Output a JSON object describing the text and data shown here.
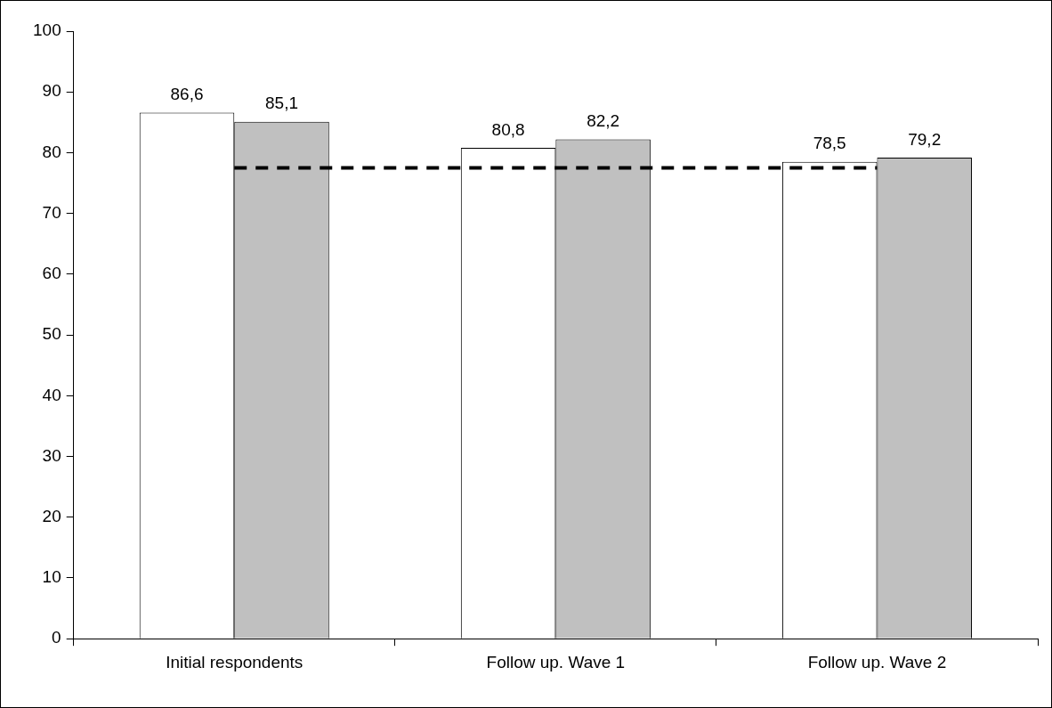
{
  "chart_data": {
    "type": "bar",
    "categories": [
      "Initial respondents",
      "Follow up. Wave 1",
      "Follow up. Wave 2"
    ],
    "series": [
      {
        "color": "#ffffff",
        "values": [
          86.6,
          80.8,
          78.5
        ],
        "value_labels": [
          "86,6",
          "80,8",
          "78,5"
        ]
      },
      {
        "color": "#c0c0c0",
        "values": [
          85.1,
          82.2,
          79.2
        ],
        "value_labels": [
          "85,1",
          "82,2",
          "79,2"
        ]
      }
    ],
    "ylim": [
      0,
      100
    ],
    "yticks": [
      0,
      10,
      20,
      30,
      40,
      50,
      60,
      70,
      80,
      90,
      100
    ],
    "grid": false,
    "legend": false,
    "ref_lines": [
      {
        "axis": "y",
        "value": 77.5,
        "color": "#000000",
        "line_style": "dashed"
      }
    ]
  }
}
